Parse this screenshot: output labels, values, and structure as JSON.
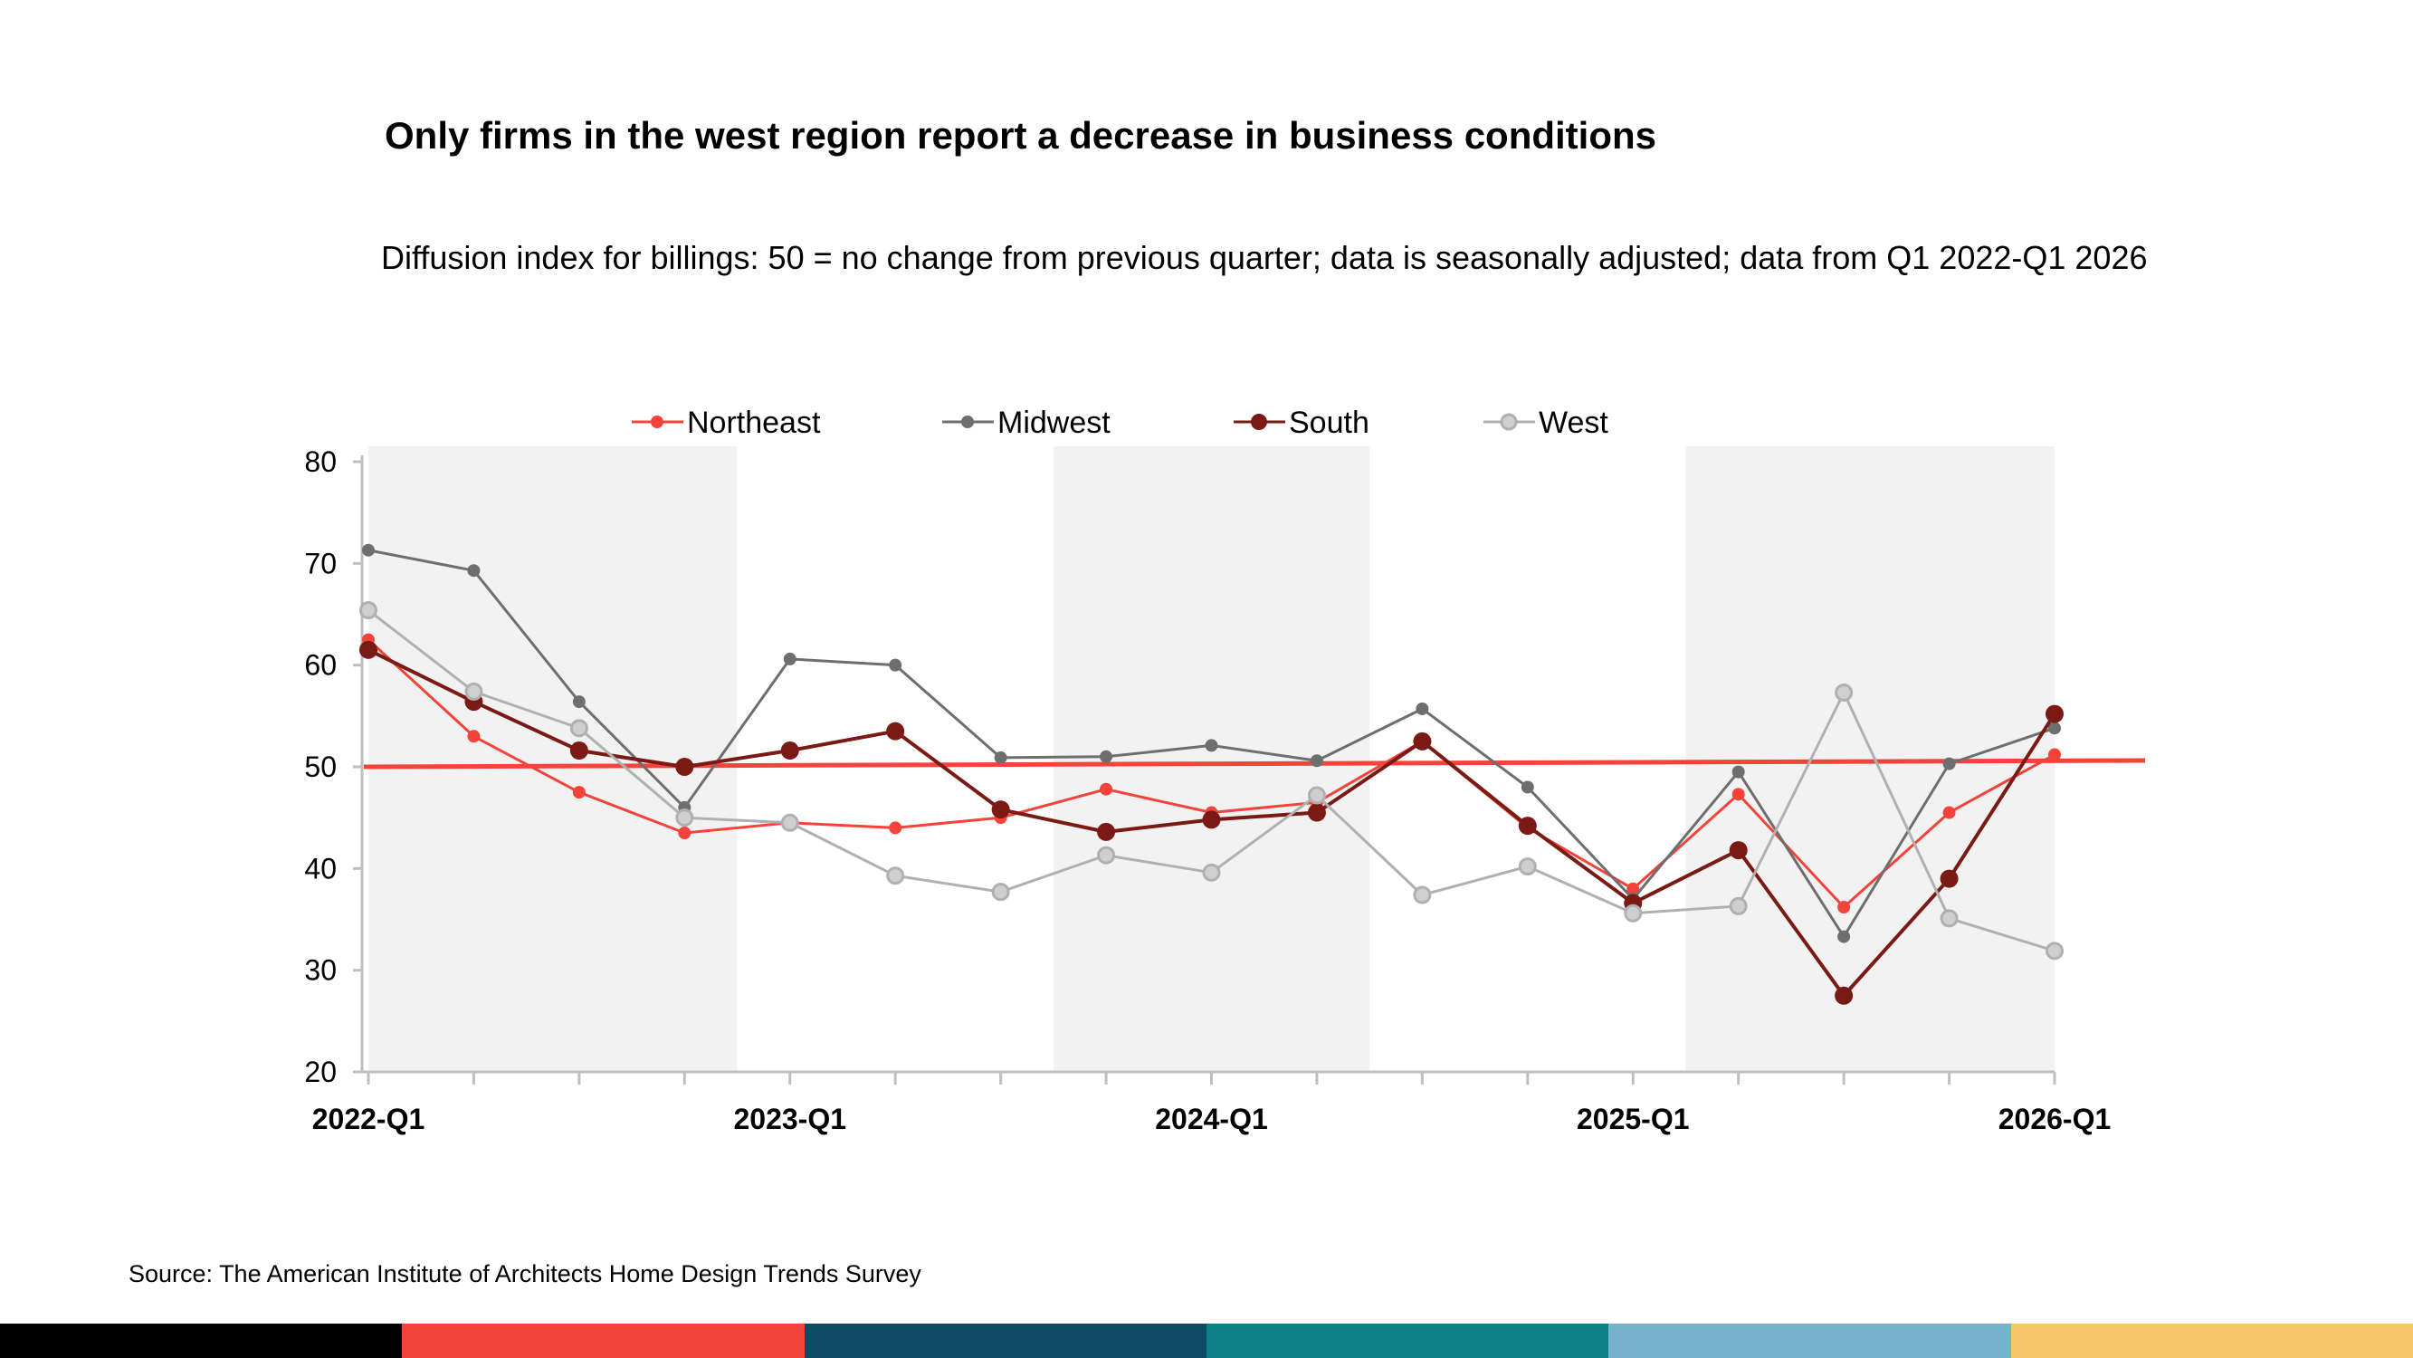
{
  "title": "Only firms in the west region report a decrease in business conditions",
  "subtitle": "Diffusion index for billings: 50 = no change from previous quarter; data is seasonally adjusted; data from Q1 2022-Q1 2026",
  "source": "Source: The American Institute of Architects Home Design Trends Survey",
  "bottom_bar_colors": [
    "#000000",
    "#f4433a",
    "#0e4a66",
    "#0e8087",
    "#74b2ce",
    "#f5c665"
  ],
  "chart_data": {
    "type": "line",
    "x": [
      "2022-Q1",
      "2022-Q2",
      "2022-Q3",
      "2022-Q4",
      "2023-Q1",
      "2023-Q2",
      "2023-Q3",
      "2023-Q4",
      "2024-Q1",
      "2024-Q2",
      "2024-Q3",
      "2024-Q4",
      "2025-Q1",
      "2025-Q2",
      "2025-Q3",
      "2025-Q4",
      "2026-Q1"
    ],
    "x_tick_labels": [
      "2022-Q1",
      "",
      "",
      "",
      "2023-Q1",
      "",
      "",
      "",
      "2024-Q1",
      "",
      "",
      "",
      "2025-Q1",
      "",
      "",
      "",
      "2026-Q1"
    ],
    "ylim": [
      20,
      80
    ],
    "y_ticks": [
      20,
      30,
      40,
      50,
      60,
      70,
      80
    ],
    "legend_position": "top",
    "shaded_years": [
      "2022",
      "2024",
      "2026"
    ],
    "reference_line": {
      "value": 50,
      "color": "#f4433a"
    },
    "series": [
      {
        "name": "Northeast",
        "color": "#f4433a",
        "marker": "filled",
        "values": [
          62.5,
          53,
          47.5,
          43.5,
          44.5,
          44,
          45,
          47.8,
          45.5,
          46.5,
          52.5,
          44,
          38,
          47.3,
          36.2,
          45.5,
          51.2
        ]
      },
      {
        "name": "Midwest",
        "color": "#6e6e6e",
        "marker": "filled",
        "values": [
          71.3,
          69.3,
          56.4,
          46,
          60.6,
          60,
          50.9,
          51,
          52.1,
          50.6,
          55.7,
          48,
          37,
          49.5,
          33.3,
          50.3,
          53.8
        ]
      },
      {
        "name": "South",
        "color": "#7b1a14",
        "marker": "large",
        "values": [
          61.5,
          56.4,
          51.6,
          50,
          51.6,
          53.5,
          45.8,
          43.6,
          44.8,
          45.5,
          52.5,
          44.2,
          36.6,
          41.8,
          27.5,
          39,
          55.2
        ]
      },
      {
        "name": "West",
        "color": "#b0b0b0",
        "marker": "hollow",
        "values": [
          65.4,
          57.4,
          53.8,
          45,
          44.5,
          39.3,
          37.7,
          41.3,
          39.6,
          47.2,
          37.4,
          40.2,
          35.6,
          36.3,
          57.3,
          35.1,
          31.9
        ]
      }
    ]
  }
}
